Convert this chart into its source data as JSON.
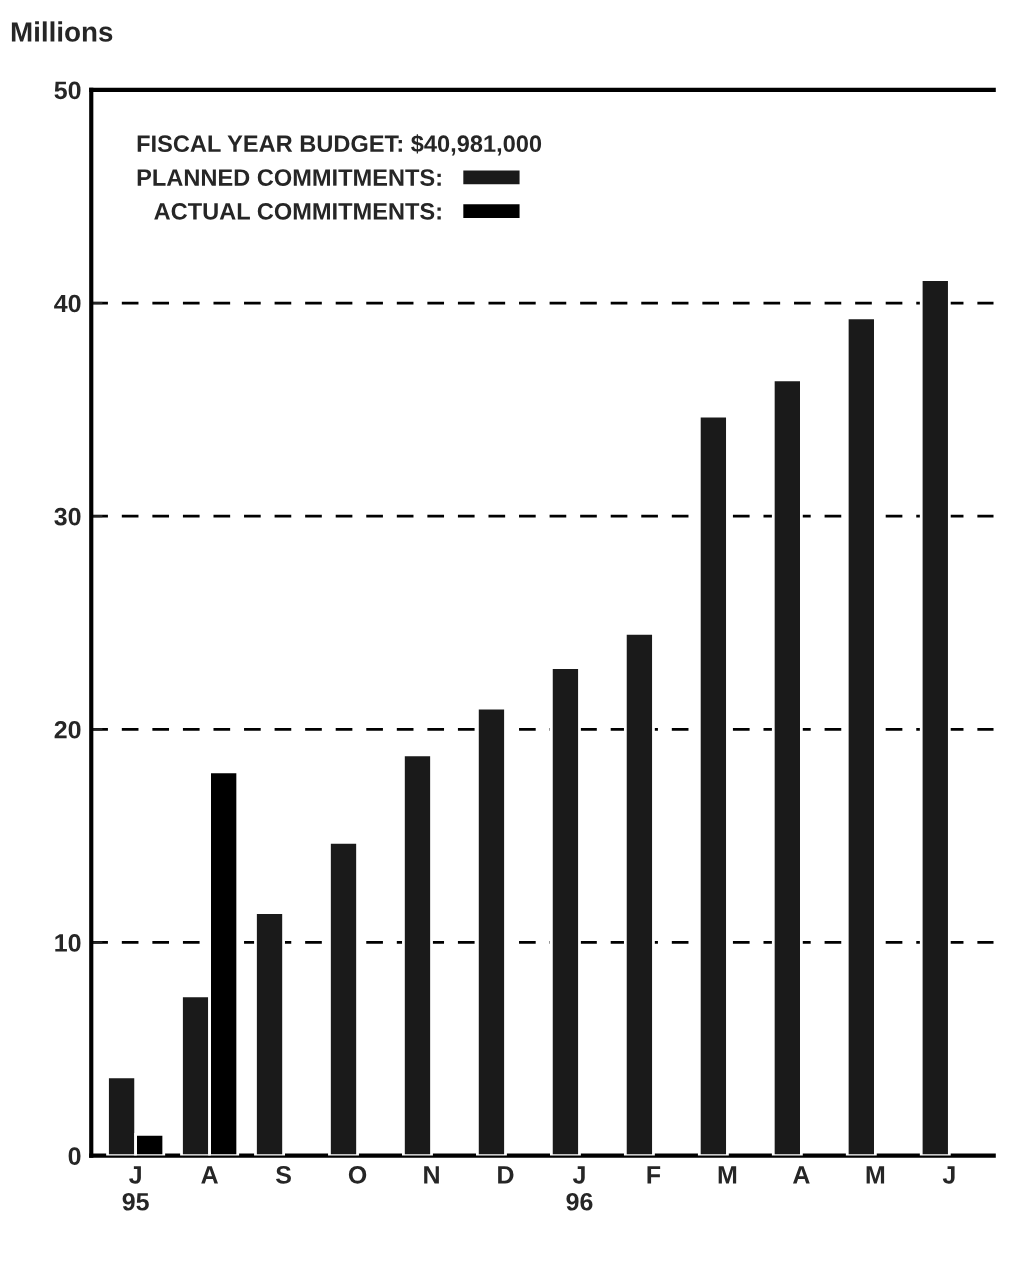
{
  "chart_data": {
    "type": "bar",
    "ylabel": "Millions",
    "legend_title": "FISCAL YEAR BUDGET: $40,981,000",
    "categories": [
      "J\n95",
      "A",
      "S",
      "O",
      "N",
      "D",
      "J\n96",
      "F",
      "M",
      "A",
      "M",
      "J"
    ],
    "series": [
      {
        "name": "PLANNED COMMITMENTS:",
        "color": "#1a1a1a",
        "values": [
          3.7,
          7.5,
          11.4,
          14.7,
          18.8,
          21.0,
          22.9,
          24.5,
          34.7,
          36.4,
          39.3,
          41.1
        ]
      },
      {
        "name": "ACTUAL COMMITMENTS:",
        "color": "#000000",
        "values": [
          1.0,
          18.0,
          null,
          null,
          null,
          null,
          null,
          null,
          null,
          null,
          null,
          null
        ]
      }
    ],
    "ylim": [
      0,
      50
    ],
    "yticks": [
      0,
      10,
      20,
      30,
      40,
      50
    ],
    "grid": "y",
    "legend": "top left"
  }
}
